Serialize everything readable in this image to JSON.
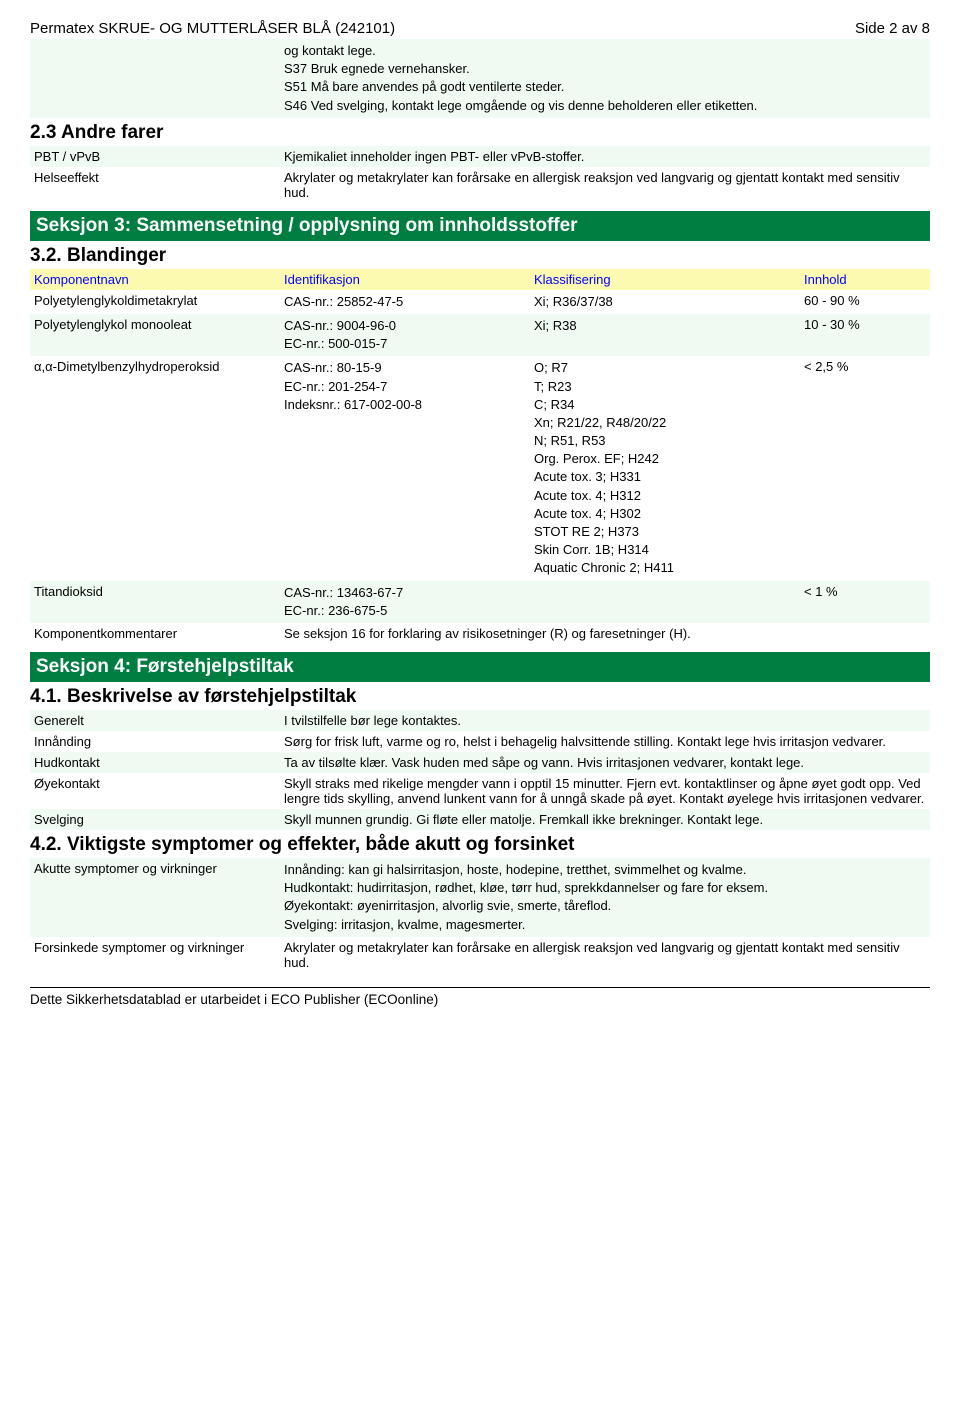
{
  "colors": {
    "section_green": "#007d40",
    "row_bg": "#effbf2",
    "link_blue": "#0000ff",
    "header_yellow": "#fcfab0",
    "text": "#000000",
    "white": "#ffffff"
  },
  "fonts": {
    "base_size_pt": 10,
    "heading_size_pt": 15,
    "section_size_pt": 15,
    "family": "Arial"
  },
  "header": {
    "title": "Permatex SKRUE- OG MUTTERLÅSER BLÅ (242101)",
    "page": "Side 2 av 8"
  },
  "s2": {
    "cont_text": "og kontakt lege.\nS37 Bruk egnede vernehansker.\nS51 Må bare anvendes på godt ventilerte steder.\nS46 Ved svelging, kontakt lege omgående og vis denne beholderen eller etiketten.",
    "andre_farer": "2.3 Andre farer",
    "pbt_label": "PBT / vPvB",
    "pbt_value": "Kjemikaliet inneholder ingen PBT- eller vPvB-stoffer.",
    "helse_label": "Helseeffekt",
    "helse_value": "Akrylater og metakrylater kan forårsake en allergisk reaksjon ved langvarig og gjentatt kontakt med sensitiv hud."
  },
  "s3": {
    "title": "Seksjon 3: Sammensetning / opplysning om innholdsstoffer",
    "blandinger": "3.2. Blandinger",
    "columns": {
      "name": "Komponentnavn",
      "id": "Identifikasjon",
      "class": "Klassifisering",
      "content": "Innhold"
    },
    "rows": [
      {
        "name": "Polyetylenglykoldimetakrylat",
        "id": "CAS-nr.: 25852-47-5",
        "class": "Xi; R36/37/38",
        "content": "60 - 90 %"
      },
      {
        "name": "Polyetylenglykol monooleat",
        "id": "CAS-nr.: 9004-96-0\nEC-nr.: 500-015-7",
        "class": "Xi; R38",
        "content": "10 - 30 %"
      },
      {
        "name": "α,α-Dimetylbenzylhydroperoksid",
        "id": "CAS-nr.: 80-15-9\nEC-nr.: 201-254-7\nIndeksnr.: 617-002-00-8",
        "class": "O; R7\nT; R23\nC; R34\nXn; R21/22, R48/20/22\nN; R51, R53\nOrg. Perox. EF; H242\nAcute tox. 3; H331\nAcute tox. 4; H312\nAcute tox. 4; H302\nSTOT RE 2; H373\nSkin Corr. 1B; H314\nAquatic Chronic 2; H411",
        "content": "< 2,5 %"
      },
      {
        "name": "Titandioksid",
        "id": "CAS-nr.: 13463-67-7\nEC-nr.: 236-675-5",
        "class": "",
        "content": "< 1 %"
      }
    ],
    "komment_label": "Komponentkommentarer",
    "komment_value": "Se seksjon 16 for forklaring av risikosetninger (R) og faresetninger (H)."
  },
  "s4": {
    "title": "Seksjon 4: Førstehjelpstiltak",
    "h41": "4.1. Beskrivelse av førstehjelpstiltak",
    "rows41": [
      {
        "label": "Generelt",
        "value": "I tvilstilfelle bør lege kontaktes."
      },
      {
        "label": "Innånding",
        "value": "Sørg for frisk luft, varme og ro, helst i behagelig halvsittende stilling. Kontakt lege hvis irritasjon vedvarer."
      },
      {
        "label": "Hudkontakt",
        "value": "Ta av tilsølte klær. Vask huden med såpe og vann. Hvis irritasjonen vedvarer, kontakt lege."
      },
      {
        "label": "Øyekontakt",
        "value": "Skyll straks med rikelige mengder vann i opptil 15 minutter. Fjern evt. kontaktlinser og åpne øyet godt opp. Ved lengre tids skylling, anvend lunkent vann for å unngå skade på øyet. Kontakt øyelege hvis irritasjonen vedvarer."
      },
      {
        "label": "Svelging",
        "value": "Skyll munnen grundig. Gi fløte eller matolje. Fremkall ikke brekninger. Kontakt lege."
      }
    ],
    "h42": "4.2. Viktigste symptomer og effekter, både akutt og forsinket",
    "rows42": [
      {
        "label": "Akutte symptomer og virkninger",
        "value": "Innånding: kan gi halsirritasjon, hoste, hodepine, tretthet, svimmelhet og kvalme.\nHudkontakt: hudirritasjon, rødhet, kløe, tørr hud, sprekkdannelser og fare for eksem.\nØyekontakt: øyenirritasjon, alvorlig svie, smerte, tåreflod.\nSvelging: irritasjon, kvalme, magesmerter."
      },
      {
        "label": "Forsinkede symptomer og virkninger",
        "value": "Akrylater og metakrylater kan forårsake en allergisk reaksjon ved langvarig og gjentatt kontakt med sensitiv hud."
      }
    ]
  },
  "footer": "Dette Sikkerhetsdatablad er utarbeidet i ECO Publisher (ECOonline)"
}
